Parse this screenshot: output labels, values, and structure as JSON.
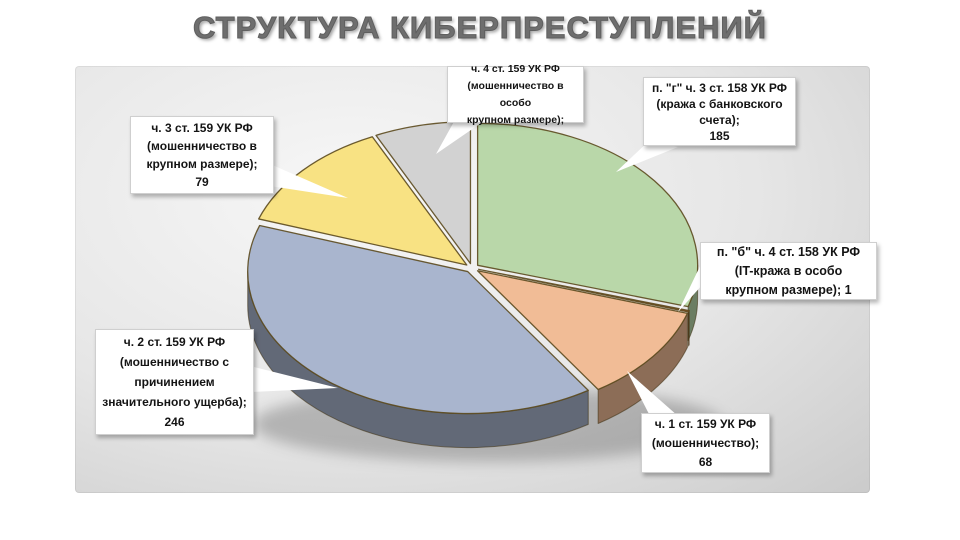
{
  "title": "СТРУКТУРА КИБЕРПРЕСТУПЛЕНИЙ",
  "chart_data": {
    "type": "pie",
    "three_d": true,
    "title": "СТРУКТУРА КИБЕРПРЕСТУПЛЕНИЙ",
    "legend_position": "none",
    "labels_as_callouts": true,
    "start_angle_deg": 0,
    "clockwise": true,
    "slices": [
      {
        "label": "п. \"г\" ч. 3 ст. 158 УК РФ (кража с банковского счета)",
        "value": 185,
        "color": "#b9d7a9"
      },
      {
        "label": "п. \"б\" ч. 4 ст. 158 УК РФ (IT-кража в особо крупном размере)",
        "value": 1,
        "color": "#a8552a"
      },
      {
        "label": "ч. 1 ст. 159 УК РФ (мошенничество)",
        "value": 68,
        "color": "#f1bc96"
      },
      {
        "label": "ч. 2 ст. 159 УК РФ (мошенничество с причинением значительного ущерба)",
        "value": 246,
        "color": "#a9b5ce"
      },
      {
        "label": "ч. 3 ст. 159 УК РФ (мошенничество в крупном размере)",
        "value": 79,
        "color": "#f8e283"
      },
      {
        "label": "ч. 4 ст. 159 УК РФ (мошенничество в особо крупном размере)",
        "value": null,
        "render_value": 44,
        "color": "#d2d2d2"
      }
    ]
  },
  "callouts": [
    {
      "id": "art159-part3",
      "text": "ч. 3 ст. 159 УК РФ\n(мошенничество в\nкрупном размере);\n79"
    },
    {
      "id": "art159-part4",
      "text": "ч. 4 ст. 159 УК РФ\n(мошенничество в особо\nкрупном размере);"
    },
    {
      "id": "art158-part3g",
      "text": "п. \"г\" ч. 3 ст. 158 УК РФ\n(кража с банковского\nсчета);\n185"
    },
    {
      "id": "art158-part4b",
      "text": "п. \"б\" ч. 4 ст. 158 УК РФ\n(IT-кража в особо\nкрупном размере); 1"
    },
    {
      "id": "art159-part1",
      "text": "ч. 1 ст. 159 УК РФ\n(мошенничество);\n68"
    },
    {
      "id": "art159-part2",
      "text": "ч. 2 ст. 159 УК РФ\n(мошенничество с\nпричинением\nзначительного ущерба);\n246"
    }
  ]
}
